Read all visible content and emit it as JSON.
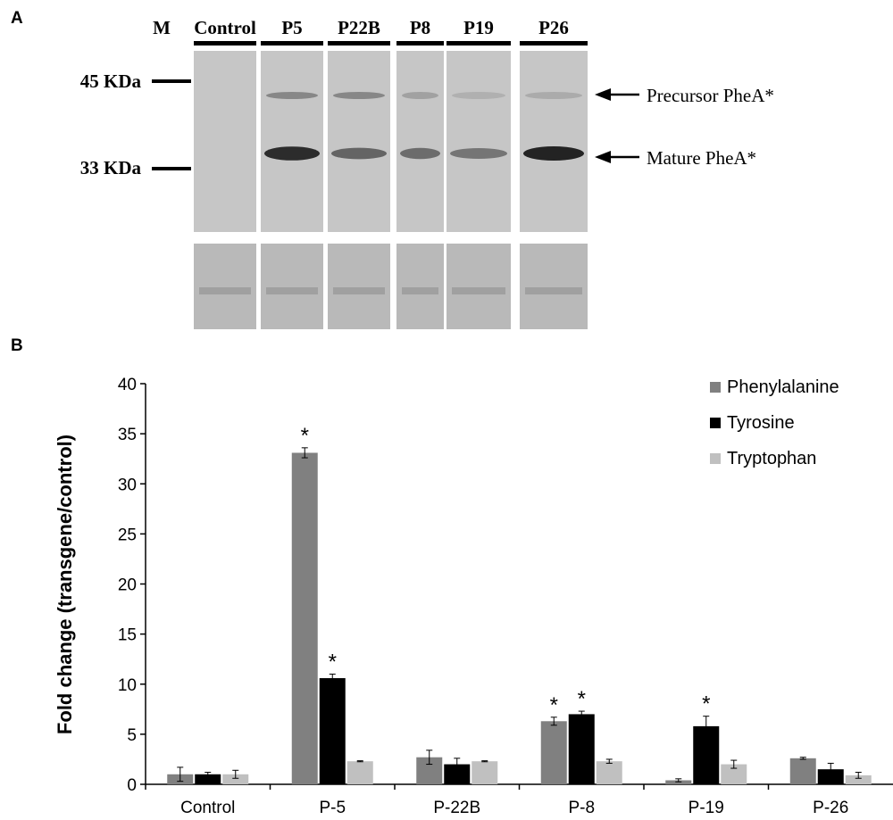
{
  "panel_a": {
    "label": "A",
    "marker_lane": "M",
    "lanes": [
      "Control",
      "P5",
      "P22B",
      "P8",
      "P19",
      "P26"
    ],
    "markers": [
      "45 KDa",
      "33 KDa"
    ],
    "band_labels": [
      "Precursor PheA*",
      "Mature PheA*"
    ],
    "band_intensity": {
      "precursor": [
        0.0,
        0.35,
        0.35,
        0.2,
        0.12,
        0.15
      ],
      "mature": [
        0.0,
        0.95,
        0.6,
        0.55,
        0.5,
        1.0
      ]
    },
    "colors": {
      "blot_bg": "#c6c6c6",
      "loading_bg": "#b9b9b9",
      "band": "#111111"
    }
  },
  "panel_b": {
    "label": "B",
    "star_symbol": "*"
  },
  "chart_data": {
    "type": "bar",
    "title": "",
    "xlabel": "",
    "ylabel": "Fold change (transgene/control)",
    "ylim": [
      0,
      40
    ],
    "yticks": [
      0,
      5,
      10,
      15,
      20,
      25,
      30,
      35,
      40
    ],
    "grid": false,
    "legend_position": "top-right",
    "categories": [
      "Control",
      "P-5",
      "P-22B",
      "P-8",
      "P-19",
      "P-26"
    ],
    "series": [
      {
        "name": "Phenylalanine",
        "color": "#808080",
        "values": [
          1.0,
          33.1,
          2.7,
          6.3,
          0.4,
          2.6
        ],
        "errors": [
          0.7,
          0.5,
          0.7,
          0.4,
          0.15,
          0.1
        ],
        "significant": [
          false,
          true,
          false,
          true,
          false,
          false
        ]
      },
      {
        "name": "Tyrosine",
        "color": "#000000",
        "values": [
          1.0,
          10.6,
          2.0,
          7.0,
          5.8,
          1.5
        ],
        "errors": [
          0.2,
          0.4,
          0.6,
          0.3,
          1.0,
          0.6
        ],
        "significant": [
          false,
          true,
          false,
          true,
          true,
          false
        ]
      },
      {
        "name": "Tryptophan",
        "color": "#c0c0c0",
        "values": [
          1.0,
          2.3,
          2.3,
          2.3,
          2.0,
          0.9
        ],
        "errors": [
          0.4,
          0.05,
          0.05,
          0.2,
          0.4,
          0.3
        ],
        "significant": [
          false,
          false,
          false,
          false,
          false,
          false
        ]
      }
    ]
  }
}
